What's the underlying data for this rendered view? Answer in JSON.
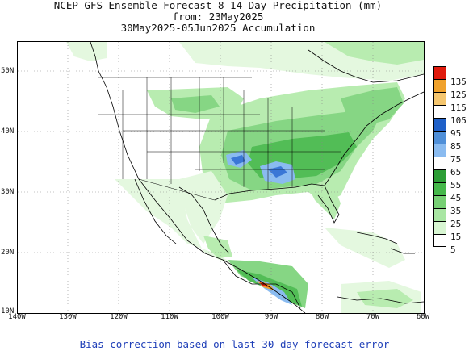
{
  "title": {
    "line1": "NCEP GFS Ensemble Forecast 8-14 Day Precipitation (mm)",
    "line2": "from: 23May2025",
    "line3": "30May2025-05Jun2025 Accumulation"
  },
  "footer": "Bias correction based on last 30-day forecast error",
  "axes": {
    "lat_labels": [
      "50N",
      "40N",
      "30N",
      "20N",
      "10N"
    ],
    "lon_labels": [
      "140W",
      "130W",
      "120W",
      "110W",
      "100W",
      "90W",
      "80W",
      "70W",
      "60W"
    ]
  },
  "legend": {
    "levels": [
      "135",
      "125",
      "115",
      "105",
      "95",
      "85",
      "75",
      "65",
      "55",
      "45",
      "35",
      "25",
      "15",
      "5"
    ],
    "colors": [
      "#e01b0d",
      "#f0a22c",
      "#f5c66e",
      "#ffffff",
      "#1f60c8",
      "#4f8fd8",
      "#8abbf0",
      "#ffffff",
      "#2d9e36",
      "#45b84a",
      "#77d074",
      "#a9e6a3",
      "#d8f6d2",
      "#ffffff"
    ]
  },
  "colors": {
    "very_light_green": "#e4f8df",
    "light_green": "#b8ecb0",
    "mid_green": "#86d684",
    "green": "#52bd56",
    "dark_green": "#2e9e38",
    "light_blue": "#8abbf0",
    "blue": "#3a77d6",
    "orange": "#f0a22c",
    "red": "#e01b0d",
    "footer_blue": "#1f3fb8"
  }
}
